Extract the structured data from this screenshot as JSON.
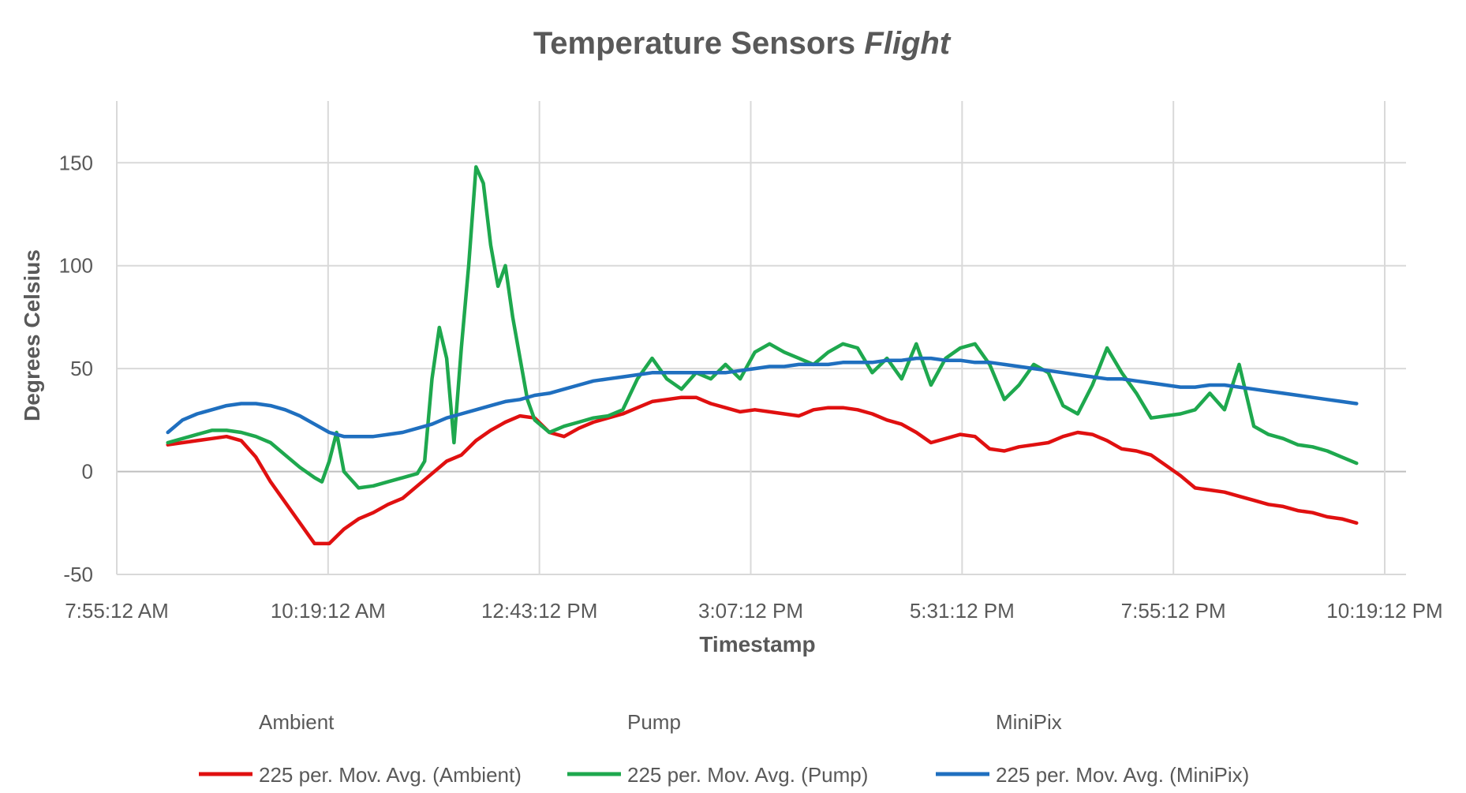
{
  "chart_data": {
    "type": "line",
    "title": "Temperature Sensors",
    "title_italic": "Flight",
    "xlabel": "Timestamp",
    "ylabel": "Degrees Celsius",
    "ylim": [
      -50,
      180
    ],
    "yticks": [
      -50,
      0,
      50,
      100,
      150
    ],
    "xlim": [
      "7:55:12 AM",
      "10:19:12 PM"
    ],
    "xticks": [
      "7:55:12 AM",
      "10:19:12 AM",
      "12:43:12 PM",
      "3:07:12 PM",
      "5:31:12 PM",
      "7:55:12 PM",
      "10:19:12 PM"
    ],
    "grid": true,
    "legend_placement": "bottom",
    "legend_headers": [
      "Ambient",
      "Pump",
      "MiniPix"
    ],
    "series": [
      {
        "name": "225 per. Mov. Avg. (Ambient)",
        "color": "#e01010",
        "x": [
          "8:30 AM",
          "8:40 AM",
          "8:50 AM",
          "9:00 AM",
          "9:10 AM",
          "9:20 AM",
          "9:30 AM",
          "9:40 AM",
          "9:50 AM",
          "10:00 AM",
          "10:10 AM",
          "10:20 AM",
          "10:30 AM",
          "10:40 AM",
          "10:50 AM",
          "11:00 AM",
          "11:10 AM",
          "11:20 AM",
          "11:30 AM",
          "11:40 AM",
          "11:50 AM",
          "12:00 PM",
          "12:10 PM",
          "12:20 PM",
          "12:30 PM",
          "12:40 PM",
          "12:50 PM",
          "1:00 PM",
          "1:10 PM",
          "1:20 PM",
          "1:30 PM",
          "1:40 PM",
          "1:50 PM",
          "2:00 PM",
          "2:10 PM",
          "2:20 PM",
          "2:30 PM",
          "2:40 PM",
          "2:50 PM",
          "3:00 PM",
          "3:10 PM",
          "3:20 PM",
          "3:30 PM",
          "3:40 PM",
          "3:50 PM",
          "4:00 PM",
          "4:10 PM",
          "4:20 PM",
          "4:30 PM",
          "4:40 PM",
          "4:50 PM",
          "5:00 PM",
          "5:10 PM",
          "5:20 PM",
          "5:30 PM",
          "5:40 PM",
          "5:50 PM",
          "6:00 PM",
          "6:10 PM",
          "6:20 PM",
          "6:30 PM",
          "6:40 PM",
          "6:50 PM",
          "7:00 PM",
          "7:10 PM",
          "7:20 PM",
          "7:30 PM",
          "7:40 PM",
          "7:50 PM",
          "8:00 PM",
          "8:10 PM",
          "8:20 PM",
          "8:30 PM",
          "8:40 PM",
          "8:50 PM",
          "9:00 PM",
          "9:10 PM",
          "9:20 PM",
          "9:30 PM",
          "9:40 PM",
          "9:50 PM",
          "10:00 PM"
        ],
        "y": [
          13,
          14,
          15,
          16,
          17,
          15,
          7,
          -5,
          -15,
          -25,
          -35,
          -35,
          -28,
          -23,
          -20,
          -16,
          -13,
          -7,
          -1,
          5,
          8,
          15,
          20,
          24,
          27,
          26,
          19,
          17,
          21,
          24,
          26,
          28,
          31,
          34,
          35,
          36,
          36,
          33,
          31,
          29,
          30,
          29,
          28,
          27,
          30,
          31,
          31,
          30,
          28,
          25,
          23,
          19,
          14,
          16,
          18,
          17,
          11,
          10,
          12,
          13,
          14,
          17,
          19,
          18,
          15,
          11,
          10,
          8,
          3,
          -2,
          -8,
          -9,
          -10,
          -12,
          -14,
          -16,
          -17,
          -19,
          -20,
          -22,
          -23,
          -25
        ]
      },
      {
        "name": "225 per. Mov. Avg. (Pump)",
        "color": "#1ea84e",
        "x": [
          "8:30 AM",
          "8:40 AM",
          "8:50 AM",
          "9:00 AM",
          "9:10 AM",
          "9:20 AM",
          "9:30 AM",
          "9:40 AM",
          "9:50 AM",
          "10:00 AM",
          "10:10 AM",
          "10:15 AM",
          "10:20 AM",
          "10:25 AM",
          "10:30 AM",
          "10:40 AM",
          "10:50 AM",
          "11:00 AM",
          "11:10 AM",
          "11:20 AM",
          "11:25 AM",
          "11:30 AM",
          "11:35 AM",
          "11:40 AM",
          "11:45 AM",
          "11:50 AM",
          "11:55 AM",
          "12:00 PM",
          "12:05 PM",
          "12:10 PM",
          "12:15 PM",
          "12:20 PM",
          "12:25 PM",
          "12:30 PM",
          "12:35 PM",
          "12:40 PM",
          "12:50 PM",
          "1:00 PM",
          "1:10 PM",
          "1:20 PM",
          "1:30 PM",
          "1:40 PM",
          "1:50 PM",
          "2:00 PM",
          "2:10 PM",
          "2:20 PM",
          "2:30 PM",
          "2:40 PM",
          "2:50 PM",
          "3:00 PM",
          "3:10 PM",
          "3:20 PM",
          "3:30 PM",
          "3:40 PM",
          "3:50 PM",
          "4:00 PM",
          "4:10 PM",
          "4:20 PM",
          "4:30 PM",
          "4:40 PM",
          "4:50 PM",
          "5:00 PM",
          "5:10 PM",
          "5:20 PM",
          "5:30 PM",
          "5:40 PM",
          "5:50 PM",
          "6:00 PM",
          "6:10 PM",
          "6:20 PM",
          "6:30 PM",
          "6:40 PM",
          "6:50 PM",
          "7:00 PM",
          "7:10 PM",
          "7:20 PM",
          "7:30 PM",
          "7:40 PM",
          "7:50 PM",
          "8:00 PM",
          "8:10 PM",
          "8:20 PM",
          "8:30 PM",
          "8:40 PM",
          "8:50 PM",
          "9:00 PM",
          "9:10 PM",
          "9:20 PM",
          "9:30 PM",
          "9:40 PM",
          "9:50 PM",
          "10:00 PM"
        ],
        "y": [
          14,
          16,
          18,
          20,
          20,
          19,
          17,
          14,
          8,
          2,
          -3,
          -5,
          5,
          19,
          0,
          -8,
          -7,
          -5,
          -3,
          -1,
          5,
          45,
          70,
          55,
          14,
          60,
          100,
          148,
          140,
          110,
          90,
          100,
          75,
          55,
          35,
          25,
          19,
          22,
          24,
          26,
          27,
          30,
          45,
          55,
          45,
          40,
          48,
          45,
          52,
          45,
          58,
          62,
          58,
          55,
          52,
          58,
          62,
          60,
          48,
          55,
          45,
          62,
          42,
          55,
          60,
          62,
          52,
          35,
          42,
          52,
          48,
          32,
          28,
          42,
          60,
          48,
          38,
          26,
          27,
          28,
          30,
          38,
          30,
          52,
          22,
          18,
          16,
          13,
          12,
          10,
          7,
          4
        ]
      },
      {
        "name": "225 per. Mov. Avg. (MiniPix)",
        "color": "#1f6fbf",
        "x": [
          "8:30 AM",
          "8:40 AM",
          "8:50 AM",
          "9:00 AM",
          "9:10 AM",
          "9:20 AM",
          "9:30 AM",
          "9:40 AM",
          "9:50 AM",
          "10:00 AM",
          "10:10 AM",
          "10:20 AM",
          "10:30 AM",
          "10:40 AM",
          "10:50 AM",
          "11:00 AM",
          "11:10 AM",
          "11:20 AM",
          "11:30 AM",
          "11:40 AM",
          "11:50 AM",
          "12:00 PM",
          "12:10 PM",
          "12:20 PM",
          "12:30 PM",
          "12:40 PM",
          "12:50 PM",
          "1:00 PM",
          "1:10 PM",
          "1:20 PM",
          "1:30 PM",
          "1:40 PM",
          "1:50 PM",
          "2:00 PM",
          "2:10 PM",
          "2:20 PM",
          "2:30 PM",
          "2:40 PM",
          "2:50 PM",
          "3:00 PM",
          "3:10 PM",
          "3:20 PM",
          "3:30 PM",
          "3:40 PM",
          "3:50 PM",
          "4:00 PM",
          "4:10 PM",
          "4:20 PM",
          "4:30 PM",
          "4:40 PM",
          "4:50 PM",
          "5:00 PM",
          "5:10 PM",
          "5:20 PM",
          "5:30 PM",
          "5:40 PM",
          "5:50 PM",
          "6:00 PM",
          "6:10 PM",
          "6:20 PM",
          "6:30 PM",
          "6:40 PM",
          "6:50 PM",
          "7:00 PM",
          "7:10 PM",
          "7:20 PM",
          "7:30 PM",
          "7:40 PM",
          "7:50 PM",
          "8:00 PM",
          "8:10 PM",
          "8:20 PM",
          "8:30 PM",
          "8:40 PM",
          "8:50 PM",
          "9:00 PM",
          "9:10 PM",
          "9:20 PM",
          "9:30 PM",
          "9:40 PM",
          "9:50 PM",
          "10:00 PM"
        ],
        "y": [
          19,
          25,
          28,
          30,
          32,
          33,
          33,
          32,
          30,
          27,
          23,
          19,
          17,
          17,
          17,
          18,
          19,
          21,
          23,
          26,
          28,
          30,
          32,
          34,
          35,
          37,
          38,
          40,
          42,
          44,
          45,
          46,
          47,
          48,
          48,
          48,
          48,
          48,
          48,
          49,
          50,
          51,
          51,
          52,
          52,
          52,
          53,
          53,
          53,
          54,
          54,
          55,
          55,
          54,
          54,
          53,
          53,
          52,
          51,
          50,
          49,
          48,
          47,
          46,
          45,
          45,
          44,
          43,
          42,
          41,
          41,
          42,
          42,
          41,
          40,
          39,
          38,
          37,
          36,
          35,
          34,
          33
        ]
      }
    ]
  }
}
